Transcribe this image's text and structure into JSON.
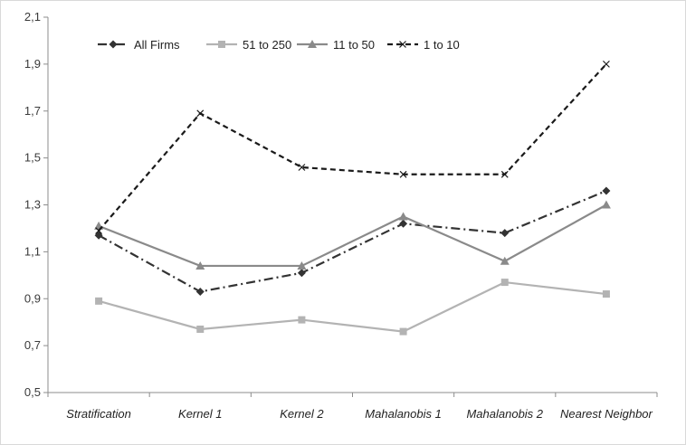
{
  "chart_data": {
    "type": "line",
    "title": "",
    "xlabel": "",
    "ylabel": "",
    "categories": [
      "Stratification",
      "Kernel 1",
      "Kernel 2",
      "Mahalanobis 1",
      "Mahalanobis 2",
      "Nearest Neighbor"
    ],
    "ylim": [
      0.5,
      2.1
    ],
    "yticks": [
      "0,5",
      "0,7",
      "0,9",
      "1,1",
      "1,3",
      "1,5",
      "1,7",
      "1,9",
      "2,1"
    ],
    "grid": false,
    "legend_position": "top-left",
    "series": [
      {
        "name": "All Firms",
        "values": [
          1.17,
          0.93,
          1.01,
          1.22,
          1.18,
          1.36
        ],
        "color": "#333333",
        "dash": "dashdot",
        "marker": "diamond"
      },
      {
        "name": "51 to 250",
        "values": [
          0.89,
          0.77,
          0.81,
          0.76,
          0.97,
          0.92
        ],
        "color": "#b3b3b3",
        "dash": "solid",
        "marker": "square"
      },
      {
        "name": "11 to 50",
        "values": [
          1.21,
          1.04,
          1.04,
          1.25,
          1.06,
          1.3
        ],
        "color": "#8a8a8a",
        "dash": "solid",
        "marker": "triangle"
      },
      {
        "name": "1 to 10",
        "values": [
          1.19,
          1.69,
          1.46,
          1.43,
          1.43,
          1.9
        ],
        "color": "#1a1a1a",
        "dash": "dash",
        "marker": "x"
      }
    ]
  }
}
